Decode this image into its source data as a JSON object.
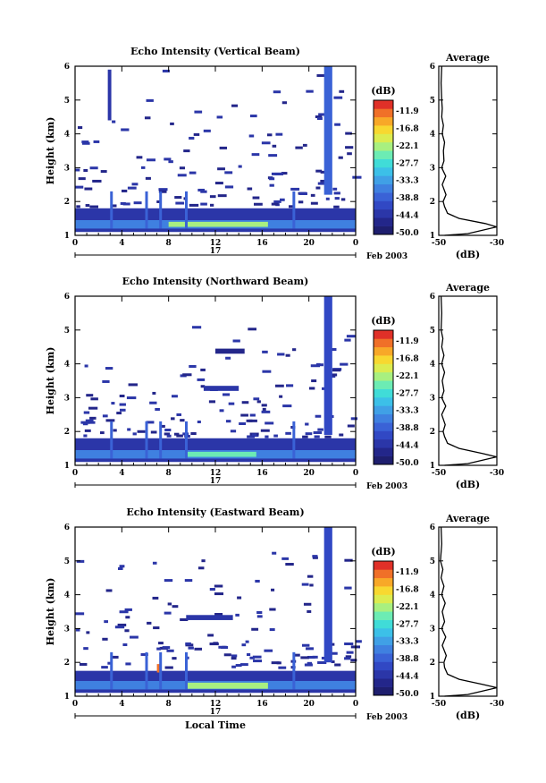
{
  "colorbar": {
    "unit": "(dB)",
    "labels": [
      "-11.9",
      "-16.8",
      "-22.1",
      "-27.7",
      "-33.3",
      "-38.8",
      "-44.4",
      "-50.0"
    ],
    "colors": [
      "#1e1e6e",
      "#23268a",
      "#2b36a8",
      "#3148c4",
      "#3a62d6",
      "#3f80e0",
      "#40a0e6",
      "#3cc0e8",
      "#40dcd8",
      "#6cecb4",
      "#a8f080",
      "#dcec50",
      "#f8d830",
      "#f8a828",
      "#f07028",
      "#e03028"
    ]
  },
  "x_axis": {
    "ticks": [
      "0",
      "4",
      "8",
      "12",
      "16",
      "20",
      "0"
    ],
    "date_day": "17",
    "date_label": "Feb 2003",
    "xlabel": "Local Time"
  },
  "panels": [
    {
      "title": "Echo Intensity (Vertical Beam)",
      "ylabel": "Height (km)",
      "y_ticks": [
        "1",
        "2",
        "3",
        "4",
        "5",
        "6"
      ],
      "avg_title": "Average",
      "avg_x_ticks": [
        "-50",
        "-30"
      ],
      "avg_xlabel": "(dB)"
    },
    {
      "title": "Echo Intensity (Northward Beam)",
      "ylabel": "Height (km)",
      "y_ticks": [
        "1",
        "2",
        "3",
        "4",
        "5",
        "6"
      ],
      "avg_title": "Average",
      "avg_x_ticks": [
        "-50",
        "-30"
      ],
      "avg_xlabel": "(dB)"
    },
    {
      "title": "Echo Intensity (Eastward Beam)",
      "ylabel": "Height (km)",
      "y_ticks": [
        "1",
        "2",
        "3",
        "4",
        "5",
        "6"
      ],
      "avg_title": "Average",
      "avg_x_ticks": [
        "-50",
        "-30"
      ],
      "avg_xlabel": "(dB)"
    }
  ],
  "chart_data": [
    {
      "type": "heatmap",
      "title": "Echo Intensity (Vertical Beam)",
      "xlabel": "Local Time",
      "ylabel": "Height (km)",
      "xlim": [
        0,
        24
      ],
      "ylim": [
        1,
        6
      ],
      "color_unit": "dB",
      "color_range": [
        -50.0,
        -11.9
      ],
      "features": [
        {
          "x": [
            0,
            24
          ],
          "y": [
            1.1,
            1.8
          ],
          "dB": -44
        },
        {
          "x": [
            0,
            24
          ],
          "y": [
            1.2,
            1.45
          ],
          "dB": -36
        },
        {
          "x": [
            8,
            16.5
          ],
          "y": [
            1.25,
            1.4
          ],
          "dB": -24
        },
        {
          "x": [
            21.3,
            22.0
          ],
          "y": [
            2.2,
            6.0
          ],
          "dB": -40
        },
        {
          "x": [
            2.8,
            3.1
          ],
          "y": [
            4.4,
            5.9
          ],
          "dB": -45
        }
      ]
    },
    {
      "type": "line",
      "title": "Average",
      "xlabel": "(dB)",
      "ylabel": "Height (km)",
      "xlim": [
        -50,
        -30
      ],
      "ylim": [
        1,
        6
      ],
      "x": [
        -30,
        -34,
        -43,
        -47,
        -48,
        -48.5,
        -47.5,
        -48.8,
        -47.6,
        -49,
        -48.2,
        -48.4,
        -48,
        -48.8,
        -48.4,
        -49,
        -48.8,
        -49,
        -49.2,
        -49
      ],
      "y": [
        1.25,
        1.35,
        1.5,
        1.65,
        1.85,
        2.0,
        2.2,
        2.5,
        2.75,
        3.0,
        3.2,
        3.5,
        3.75,
        4.0,
        4.25,
        4.5,
        4.75,
        5.0,
        5.5,
        6.0
      ]
    },
    {
      "type": "heatmap",
      "title": "Echo Intensity (Northward Beam)",
      "xlabel": "Local Time",
      "ylabel": "Height (km)",
      "xlim": [
        0,
        24
      ],
      "ylim": [
        1,
        6
      ],
      "color_unit": "dB",
      "color_range": [
        -50.0,
        -11.9
      ],
      "features": [
        {
          "x": [
            0,
            24
          ],
          "y": [
            1.1,
            1.8
          ],
          "dB": -44
        },
        {
          "x": [
            0,
            24
          ],
          "y": [
            1.2,
            1.45
          ],
          "dB": -36
        },
        {
          "x": [
            9.5,
            15.5
          ],
          "y": [
            1.25,
            1.4
          ],
          "dB": -28
        },
        {
          "x": [
            21.3,
            22.0
          ],
          "y": [
            1.9,
            6.0
          ],
          "dB": -42
        },
        {
          "x": [
            11,
            14
          ],
          "y": [
            3.2,
            3.35
          ],
          "dB": -44
        },
        {
          "x": [
            12,
            14.5
          ],
          "y": [
            4.3,
            4.45
          ],
          "dB": -46
        }
      ]
    },
    {
      "type": "line",
      "title": "Average",
      "xlabel": "(dB)",
      "ylabel": "Height (km)",
      "xlim": [
        -50,
        -30
      ],
      "ylim": [
        1,
        6
      ],
      "x": [
        -30,
        -35,
        -43,
        -47,
        -48,
        -48.5,
        -47.8,
        -49,
        -47.6,
        -49,
        -48.2,
        -48.8,
        -48,
        -49,
        -48.2,
        -49,
        -48.6,
        -49.2,
        -49,
        -49.2
      ],
      "y": [
        1.25,
        1.35,
        1.5,
        1.65,
        1.85,
        2.0,
        2.2,
        2.5,
        2.75,
        3.0,
        3.2,
        3.5,
        3.75,
        4.0,
        4.25,
        4.5,
        4.75,
        5.0,
        5.5,
        6.0
      ]
    },
    {
      "type": "heatmap",
      "title": "Echo Intensity (Eastward Beam)",
      "xlabel": "Local Time",
      "ylabel": "Height (km)",
      "xlim": [
        0,
        24
      ],
      "ylim": [
        1,
        6
      ],
      "color_unit": "dB",
      "color_range": [
        -50.0,
        -11.9
      ],
      "features": [
        {
          "x": [
            0,
            24
          ],
          "y": [
            1.1,
            1.75
          ],
          "dB": -44
        },
        {
          "x": [
            0,
            24
          ],
          "y": [
            1.2,
            1.45
          ],
          "dB": -36
        },
        {
          "x": [
            9.5,
            16.5
          ],
          "y": [
            1.22,
            1.4
          ],
          "dB": -24
        },
        {
          "x": [
            7,
            7.3
          ],
          "y": [
            1.7,
            1.95
          ],
          "dB": -16
        },
        {
          "x": [
            21.3,
            22.0
          ],
          "y": [
            2.0,
            6.0
          ],
          "dB": -42
        },
        {
          "x": [
            9.5,
            13.5
          ],
          "y": [
            3.25,
            3.4
          ],
          "dB": -45
        }
      ]
    },
    {
      "type": "line",
      "title": "Average",
      "xlabel": "(dB)",
      "ylabel": "Height (km)",
      "xlim": [
        -50,
        -30
      ],
      "ylim": [
        1,
        6
      ],
      "x": [
        -30,
        -35,
        -43,
        -47,
        -48,
        -48.2,
        -47.4,
        -48.8,
        -47.6,
        -49,
        -48,
        -48.8,
        -47.8,
        -49,
        -48.2,
        -49.2,
        -48.6,
        -49.4,
        -49,
        -49.2
      ],
      "y": [
        1.25,
        1.35,
        1.5,
        1.65,
        1.85,
        2.0,
        2.2,
        2.5,
        2.75,
        3.0,
        3.2,
        3.5,
        3.75,
        4.0,
        4.25,
        4.5,
        4.75,
        5.0,
        5.5,
        6.0
      ]
    }
  ]
}
